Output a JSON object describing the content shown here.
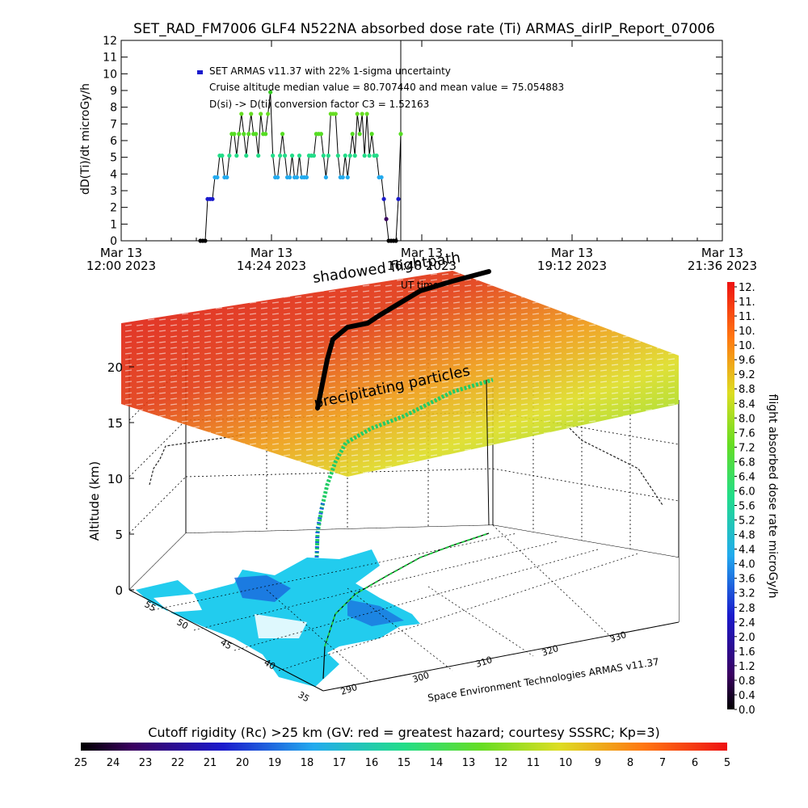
{
  "title": "SET_RAD_FM7006  GLF4 N522NA absorbed dose rate (Ti) ARMAS_dirIP_Report_07006",
  "chart_data": [
    {
      "type": "scatter",
      "ylabel": "dD(Ti)/dt microGy/h",
      "ylim": [
        0,
        12
      ],
      "yticks": [
        "0",
        "1",
        "2",
        "3",
        "4",
        "5",
        "6",
        "7",
        "8",
        "9",
        "10",
        "11",
        "12"
      ],
      "xticks": [
        {
          "line1": "Mar 13",
          "line2": "12:00 2023"
        },
        {
          "line1": "Mar 13",
          "line2": "14:24 2023"
        },
        {
          "line1": "Mar 13",
          "line2": "16:48 2023"
        },
        {
          "line1": "Mar 13",
          "line2": "19:12 2023"
        },
        {
          "line1": "Mar 13",
          "line2": "21:36 2023"
        }
      ],
      "annotations": [
        "SET ARMAS v11.37 with 22% 1-sigma uncertainty",
        "Cruise altitude median value = 80.707440 and mean value = 75.054883",
        "D(si) -> D(ti) conversion factor C3 = 1.52163"
      ],
      "series": [
        {
          "values": [
            0,
            0,
            0,
            2.5,
            2.5,
            2.5,
            3.8,
            3.8,
            5.1,
            5.1,
            3.8,
            3.8,
            5.1,
            6.4,
            6.4,
            5.1,
            6.4,
            7.6,
            6.4,
            5.1,
            6.4,
            7.6,
            6.4,
            6.4,
            5.1,
            7.6,
            6.4,
            6.4,
            7.6,
            8.9,
            5.1,
            3.8,
            3.8,
            5.1,
            6.4,
            5.1,
            3.8,
            3.8,
            5.1,
            3.8,
            3.8,
            5.1,
            3.8,
            3.8,
            3.8,
            5.1,
            5.1,
            5.1,
            6.4,
            6.4,
            6.4,
            5.1,
            3.8,
            5.1,
            7.6,
            7.6,
            7.6,
            5.1,
            3.8,
            3.8,
            5.1,
            3.8,
            5.1,
            6.4,
            5.1,
            7.6,
            6.4,
            7.6,
            5.1,
            7.6,
            5.1,
            6.4,
            5.1,
            5.1,
            3.8,
            3.8,
            2.5,
            1.3,
            0,
            0,
            0,
            0,
            2.5,
            6.4
          ]
        }
      ]
    },
    {
      "type": "3d-surface",
      "zlabel": "Altitude (km)",
      "zticks": [
        "0",
        "5",
        "10",
        "15",
        "20"
      ],
      "latticks": [
        "35",
        "40",
        "45",
        "50",
        "55"
      ],
      "lonticks": [
        "290",
        "300",
        "310",
        "320",
        "330"
      ],
      "annotations": [
        "shadowed flightpath",
        "UT time",
        "precipitating particles",
        "Space Environment Technologies ARMAS v11.37"
      ]
    }
  ],
  "colorbar_right": {
    "label": "flight absorbed dose rate microGy/h",
    "ticks": [
      "12.",
      "11.",
      "11.",
      "10.",
      "10.",
      "9.6",
      "9.2",
      "8.8",
      "8.4",
      "8.0",
      "7.6",
      "7.2",
      "6.8",
      "6.4",
      "6.0",
      "5.6",
      "5.2",
      "4.8",
      "4.4",
      "4.0",
      "3.6",
      "3.2",
      "2.8",
      "2.4",
      "2.0",
      "1.6",
      "1.2",
      "0.8",
      "0.4",
      "0.0"
    ]
  },
  "colorbar_bottom": {
    "title": "Cutoff rigidity (Rc) >25 km (GV: red = greatest hazard; courtesy SSSRC; Kp=3)",
    "ticks": [
      "25",
      "24",
      "23",
      "22",
      "21",
      "20",
      "19",
      "18",
      "17",
      "16",
      "15",
      "14",
      "13",
      "12",
      "11",
      "10",
      "9",
      "8",
      "7",
      "6",
      "5"
    ]
  }
}
